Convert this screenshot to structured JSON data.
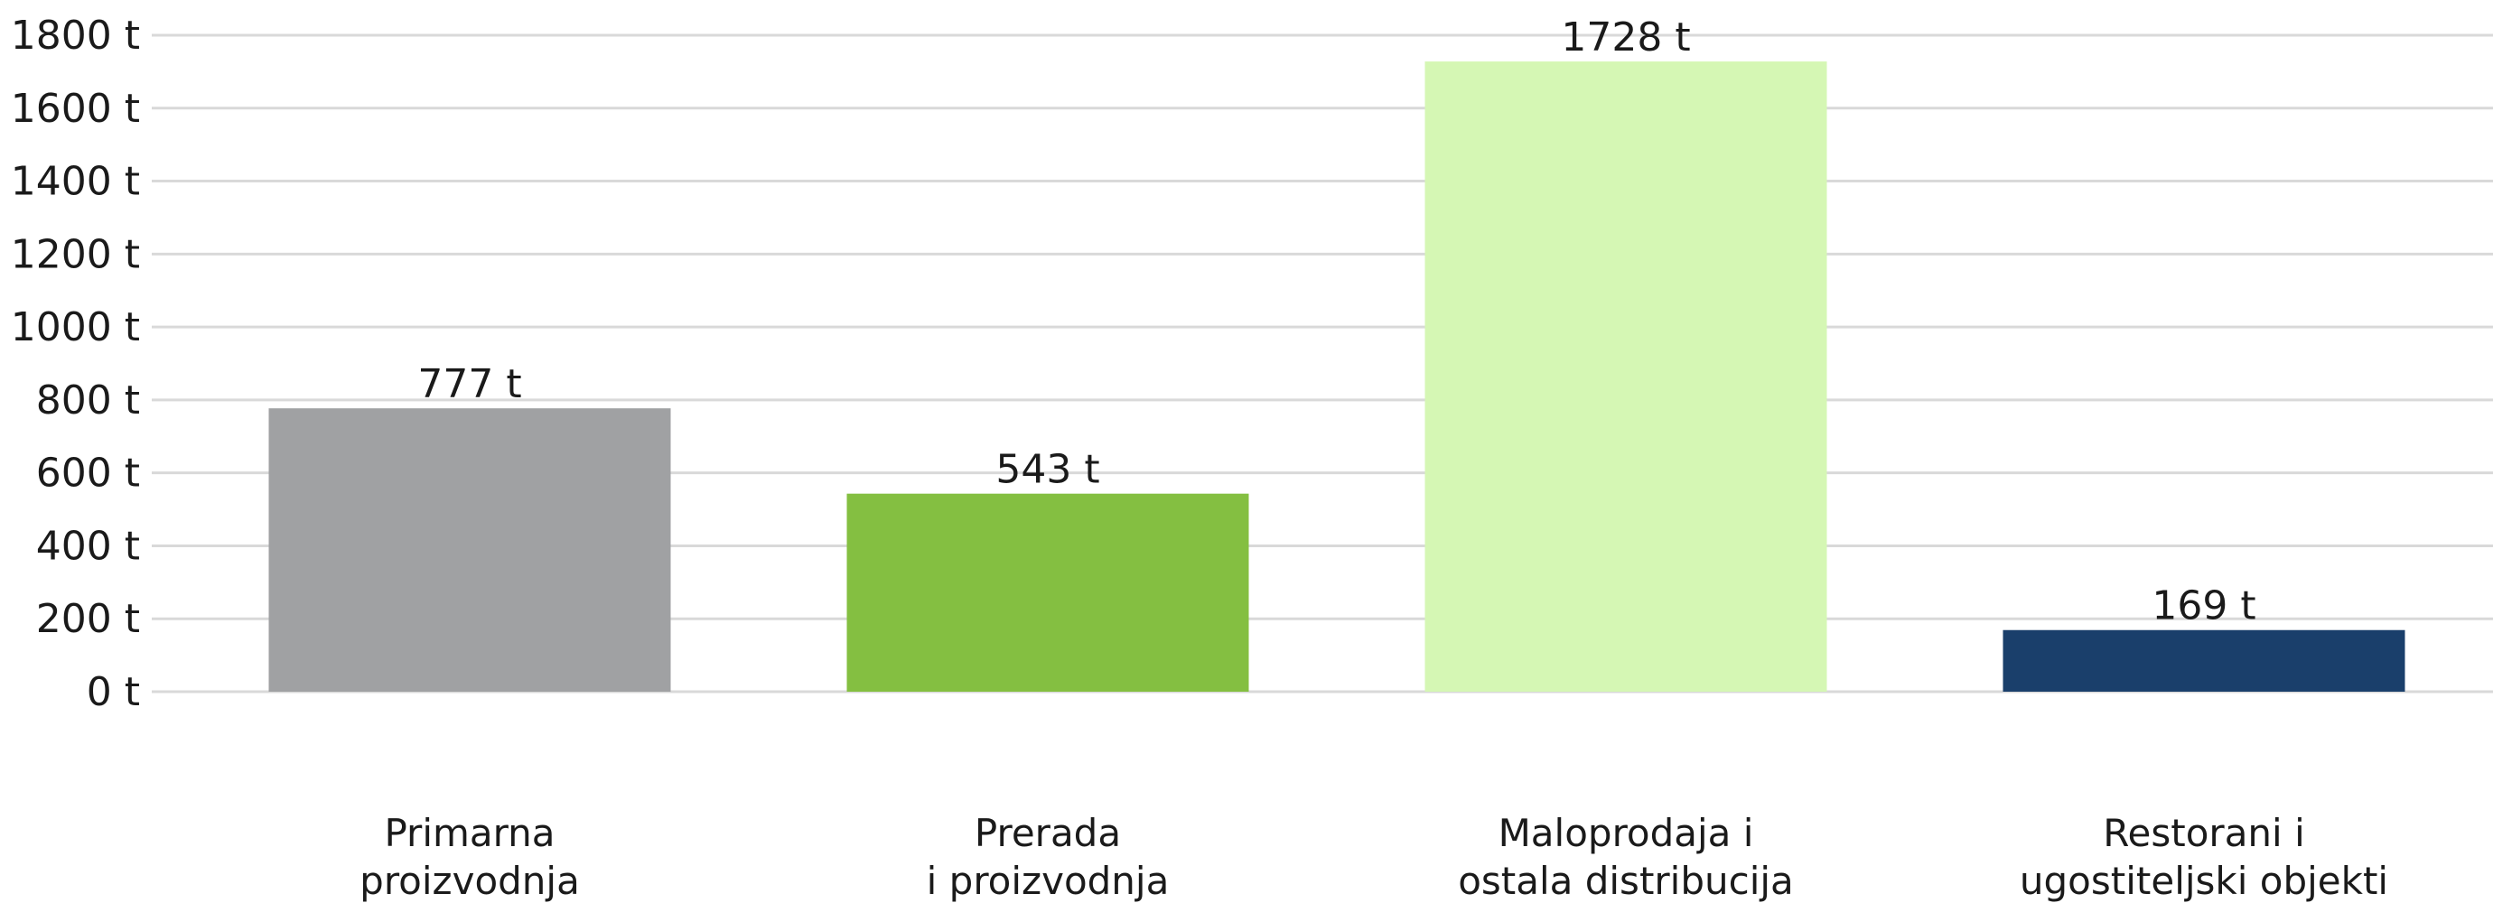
{
  "chart_data": {
    "type": "bar",
    "title": "",
    "xlabel": "",
    "ylabel": "",
    "unit": "t",
    "ylim": [
      0,
      1800
    ],
    "ytick_step": 200,
    "yticks": [
      "0 t",
      "200 t",
      "400 t",
      "600 t",
      "800 t",
      "1000 t",
      "1200 t",
      "1400 t",
      "1600 t",
      "1800 t"
    ],
    "grid": true,
    "legend": "none",
    "categories": [
      [
        "Primarna",
        "proizvodnja"
      ],
      [
        "Prerada",
        "i proizvodnja"
      ],
      [
        "Maloprodaja i",
        "ostala distribucija"
      ],
      [
        "Restorani i",
        "ugostiteljski objekti"
      ]
    ],
    "values": [
      777,
      543,
      1728,
      169
    ],
    "value_labels": [
      "777 t",
      "543 t",
      "1728 t",
      "169 t"
    ],
    "colors": [
      "#a0a1a3",
      "#84bf41",
      "#d5f7b4",
      "#1a3f6b"
    ]
  }
}
